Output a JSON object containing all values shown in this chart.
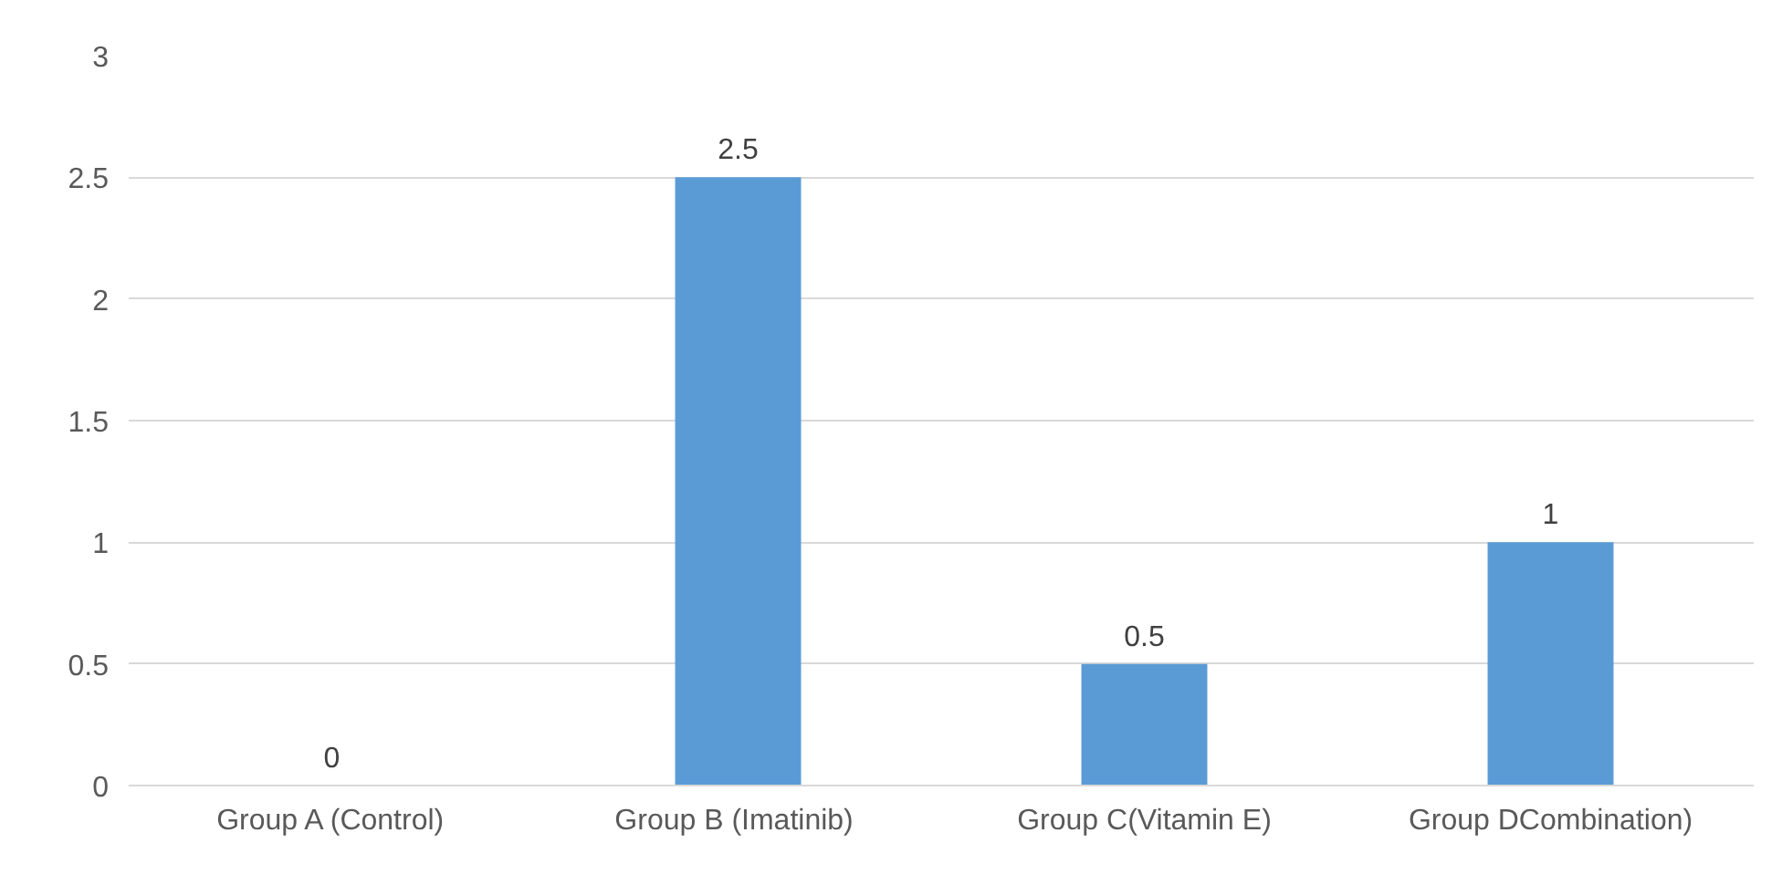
{
  "chart_data": {
    "type": "bar",
    "categories": [
      "Group A (Control)",
      "Group B  (Imatinib)",
      "Group C(Vitamin E)",
      "Group DCombination)"
    ],
    "values": [
      0,
      2.5,
      0.5,
      1
    ],
    "color": "#5b9bd5",
    "ylim": [
      0,
      3
    ],
    "yticks": [
      0,
      0.5,
      1,
      1.5,
      2,
      2.5,
      3
    ],
    "grid": "y",
    "data_labels": true
  }
}
